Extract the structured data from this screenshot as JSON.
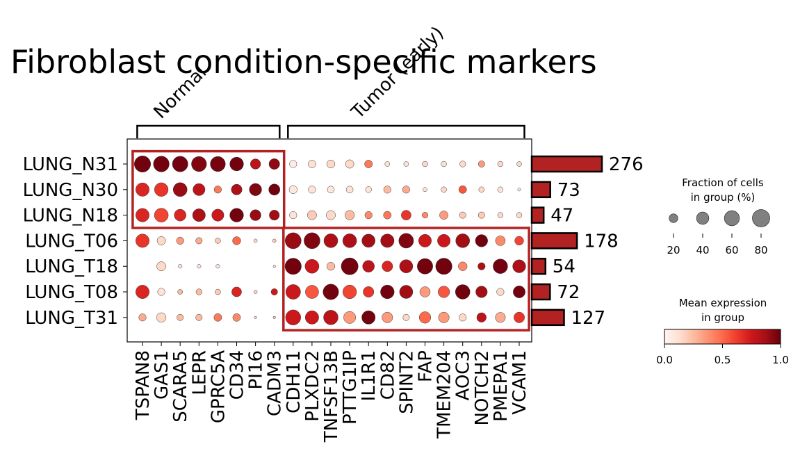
{
  "chart_data": {
    "type": "dotplot",
    "title": "Fibroblast condition-specific markers",
    "genes": [
      "TSPAN8",
      "GAS1",
      "SCARA5",
      "LEPR",
      "GPRC5A",
      "CD34",
      "PI16",
      "CADM3",
      "CDH11",
      "PLXDC2",
      "TNFSF13B",
      "PTTG1IP",
      "IL1R1",
      "CD82",
      "SPINT2",
      "FAP",
      "TMEM204",
      "AOC3",
      "NOTCH2",
      "PMEPA1",
      "VCAM1"
    ],
    "groups": [
      "LUNG_N31",
      "LUNG_N30",
      "LUNG_N18",
      "LUNG_T06",
      "LUNG_T18",
      "LUNG_T08",
      "LUNG_T31"
    ],
    "gene_groups": [
      {
        "label": "Normal",
        "start": 0,
        "end": 7
      },
      {
        "label": "Tumor (early)",
        "start": 8,
        "end": 20
      }
    ],
    "highlight_boxes": [
      {
        "gene_start": 0,
        "gene_end": 7,
        "group_start": 0,
        "group_end": 2
      },
      {
        "gene_start": 8,
        "gene_end": 20,
        "group_start": 3,
        "group_end": 6
      }
    ],
    "fraction": [
      [
        88,
        82,
        80,
        75,
        75,
        62,
        35,
        38,
        18,
        20,
        22,
        24,
        20,
        8,
        8,
        10,
        10,
        12,
        14,
        10,
        8
      ],
      [
        60,
        62,
        64,
        48,
        18,
        38,
        50,
        42,
        22,
        18,
        16,
        16,
        12,
        18,
        18,
        6,
        10,
        20,
        10,
        10,
        3
      ],
      [
        60,
        64,
        46,
        54,
        48,
        62,
        40,
        34,
        18,
        28,
        28,
        30,
        18,
        20,
        32,
        12,
        24,
        14,
        14,
        10,
        10
      ],
      [
        60,
        24,
        18,
        14,
        10,
        22,
        4,
        4,
        85,
        85,
        64,
        64,
        58,
        60,
        72,
        54,
        54,
        64,
        50,
        32,
        26
      ],
      [
        0,
        28,
        5,
        5,
        5,
        0,
        0,
        2,
        88,
        64,
        22,
        95,
        46,
        38,
        58,
        80,
        88,
        26,
        18,
        70,
        56
      ],
      [
        60,
        18,
        8,
        12,
        10,
        32,
        4,
        14,
        72,
        58,
        80,
        62,
        38,
        62,
        58,
        36,
        44,
        70,
        44,
        18,
        48
      ],
      [
        18,
        30,
        14,
        14,
        20,
        20,
        2,
        2,
        76,
        60,
        70,
        48,
        60,
        38,
        14,
        44,
        38,
        18,
        30,
        34,
        38
      ]
    ],
    "expression": [
      [
        0.98,
        0.98,
        0.98,
        0.95,
        0.97,
        0.98,
        0.8,
        0.92,
        0.05,
        0.12,
        0.15,
        0.15,
        0.45,
        0.1,
        0.1,
        0.15,
        0.12,
        0.15,
        0.35,
        0.15,
        0.15
      ],
      [
        0.7,
        0.65,
        0.9,
        0.8,
        0.45,
        0.85,
        0.95,
        0.98,
        0.08,
        0.1,
        0.08,
        0.1,
        0.1,
        0.25,
        0.3,
        0.1,
        0.15,
        0.55,
        0.15,
        0.1,
        0.1
      ],
      [
        0.7,
        0.6,
        0.7,
        0.85,
        0.75,
        0.98,
        0.9,
        0.88,
        0.1,
        0.2,
        0.15,
        0.25,
        0.4,
        0.45,
        0.65,
        0.4,
        0.35,
        0.2,
        0.2,
        0.15,
        0.15
      ],
      [
        0.65,
        0.15,
        0.35,
        0.3,
        0.2,
        0.5,
        0.15,
        0.2,
        0.9,
        0.95,
        0.85,
        0.85,
        0.88,
        0.88,
        0.95,
        0.75,
        0.75,
        0.88,
        0.98,
        0.4,
        0.6
      ],
      [
        0.2,
        0.15,
        0.1,
        0.1,
        0.1,
        0.1,
        0.1,
        0.1,
        0.98,
        0.75,
        0.25,
        0.98,
        0.8,
        0.7,
        0.85,
        0.98,
        0.98,
        0.4,
        0.85,
        0.98,
        0.85
      ],
      [
        0.7,
        0.1,
        0.25,
        0.25,
        0.2,
        0.7,
        0.15,
        0.75,
        0.75,
        0.55,
        0.98,
        0.6,
        0.65,
        0.98,
        0.88,
        0.35,
        0.55,
        0.98,
        0.88,
        0.15,
        0.98
      ],
      [
        0.3,
        0.15,
        0.25,
        0.25,
        0.45,
        0.4,
        0.15,
        0.2,
        0.75,
        0.75,
        0.8,
        0.35,
        0.98,
        0.35,
        0.15,
        0.5,
        0.35,
        0.15,
        0.8,
        0.3,
        0.65
      ]
    ],
    "cell_counts": [
      276,
      73,
      47,
      178,
      54,
      72,
      127
    ],
    "bar_color": "#b22222",
    "highlight_color": "#b22222",
    "colormap": "Reds",
    "size_legend": {
      "title_line1": "Fraction of cells",
      "title_line2": "in group (%)",
      "values": [
        20,
        40,
        60,
        80
      ],
      "labels": [
        "20",
        "40",
        "60",
        "80"
      ]
    },
    "color_legend": {
      "title_line1": "Mean expression",
      "title_line2": "in group",
      "range": [
        0.0,
        1.0
      ],
      "ticks": [
        "0.0",
        "0.5",
        "1.0"
      ]
    }
  }
}
